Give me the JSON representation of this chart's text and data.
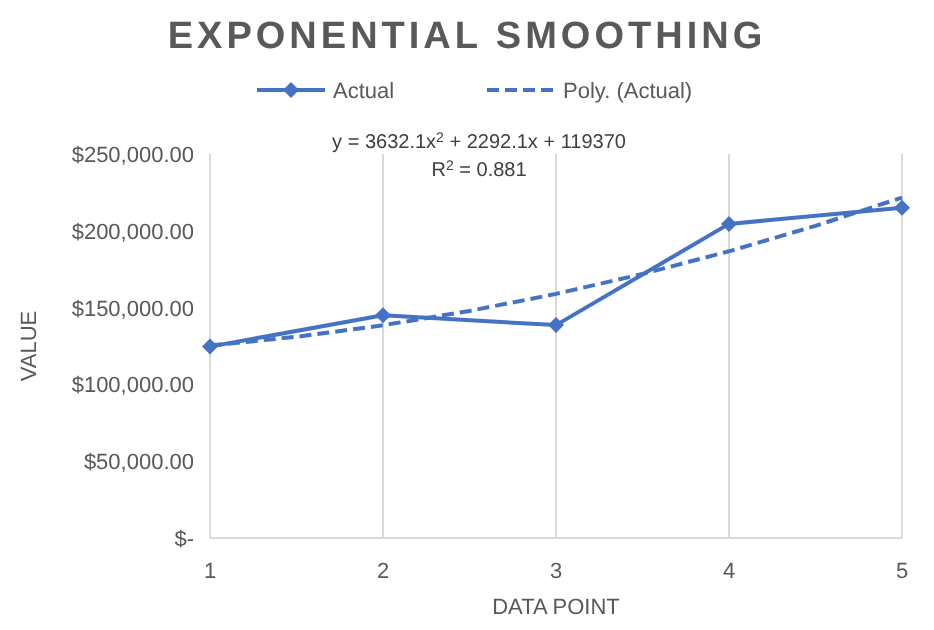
{
  "chart_data": {
    "type": "line",
    "title": "EXPONENTIAL SMOOTHING",
    "xlabel": "DATA POINT",
    "ylabel": "VALUE",
    "annotations": [
      "y = 3632.1x$^{2}$ + 2292.1x + 119370",
      "R$^{2}$ = 0.881"
    ],
    "x": [
      1,
      2,
      3,
      4,
      5
    ],
    "series": [
      {
        "name": "Actual",
        "color": "#4472c4",
        "values": [
          124600,
          145000,
          138600,
          204500,
          215000
        ],
        "marker": "diamond",
        "line_style": "solid"
      },
      {
        "name": "Poly. (Actual)",
        "color": "#4472c4",
        "x": [
          1,
          1.5,
          2,
          2.5,
          3,
          3.5,
          4,
          4.5,
          5
        ],
        "values": [
          125294,
          130980,
          138483,
          147801,
          158935,
          171886,
          186652,
          203234,
          221633
        ],
        "marker": "none",
        "line_style": "dashed"
      }
    ],
    "xlim": [
      1,
      5
    ],
    "xticks": [
      1,
      2,
      3,
      4,
      5
    ],
    "ylim": [
      0,
      250000
    ],
    "yticks": [
      {
        "value": 0,
        "label": "$-"
      },
      {
        "value": 50000,
        "label": "$50,000.00"
      },
      {
        "value": 100000,
        "label": "$100,000.00"
      },
      {
        "value": 150000,
        "label": "$150,000.00"
      },
      {
        "value": 200000,
        "label": "$200,000.00"
      },
      {
        "value": 250000,
        "label": "$250,000.00"
      }
    ],
    "grid": "x",
    "legend": "top"
  }
}
